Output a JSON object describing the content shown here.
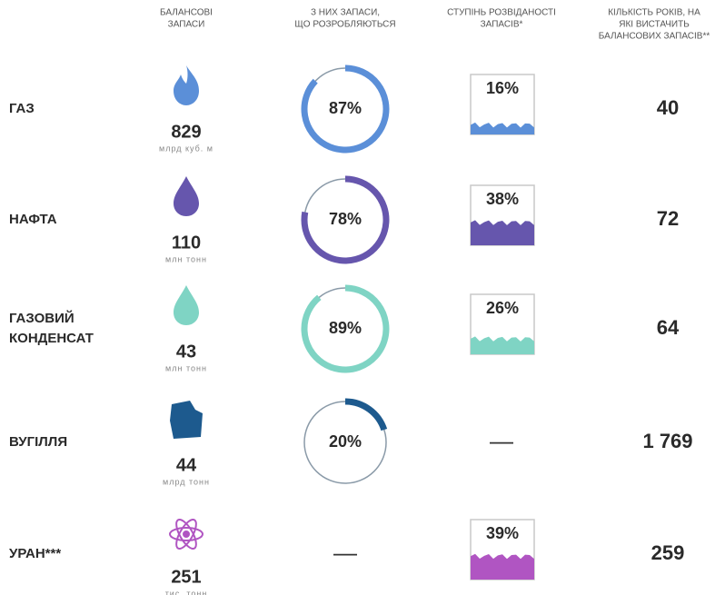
{
  "headers": [
    [
      "БАЛАНСОВІ",
      "ЗАПАСИ"
    ],
    [
      "З НИХ ЗАПАСИ,",
      "ЩО РОЗРОБЛЯЮТЬСЯ"
    ],
    [
      "СТУПІНЬ РОЗВІДАНОСТІ",
      "ЗАПАСІВ*"
    ],
    [
      "КІЛЬКІСТЬ РОКІВ, НА",
      "ЯКІ ВИСТАЧИТЬ",
      "БАЛАНСОВИХ ЗАПАСІВ**"
    ]
  ],
  "rows": [
    {
      "name": [
        "ГАЗ"
      ],
      "color": "#5b8fd8",
      "reserves": 829,
      "unit": "млрд куб. м",
      "developed": {
        "value": 87,
        "label": "87%"
      },
      "explored": {
        "value": 16,
        "label": "16%"
      },
      "years": 40
    },
    {
      "name": [
        "НАФТА"
      ],
      "color": "#6656ad",
      "reserves": 110,
      "unit": "млн тонн",
      "developed": {
        "value": 78,
        "label": "78%"
      },
      "explored": {
        "value": 38,
        "label": "38%"
      },
      "years": 72
    },
    {
      "name": [
        "ГАЗОВИЙ",
        "КОНДЕНСАТ"
      ],
      "color": "#7fd4c4",
      "reserves": 43,
      "unit": "млн тонн",
      "developed": {
        "value": 89,
        "label": "89%"
      },
      "explored": {
        "value": 26,
        "label": "26%"
      },
      "years": 64
    },
    {
      "name": [
        "ВУГІЛЛЯ"
      ],
      "color": "#1d5a8e",
      "reserves": 44,
      "unit": "млрд тонн",
      "developed": {
        "value": 20,
        "label": "20%"
      },
      "explored": "—",
      "years": {
        "value": 1769,
        "label": "1 769"
      }
    },
    {
      "name": [
        "УРАН***"
      ],
      "color": "#b055c2",
      "reserves": 251,
      "unit": "тис. тонн",
      "developed": "—",
      "explored": {
        "value": 39,
        "label": "39%"
      },
      "years": 259
    }
  ]
}
